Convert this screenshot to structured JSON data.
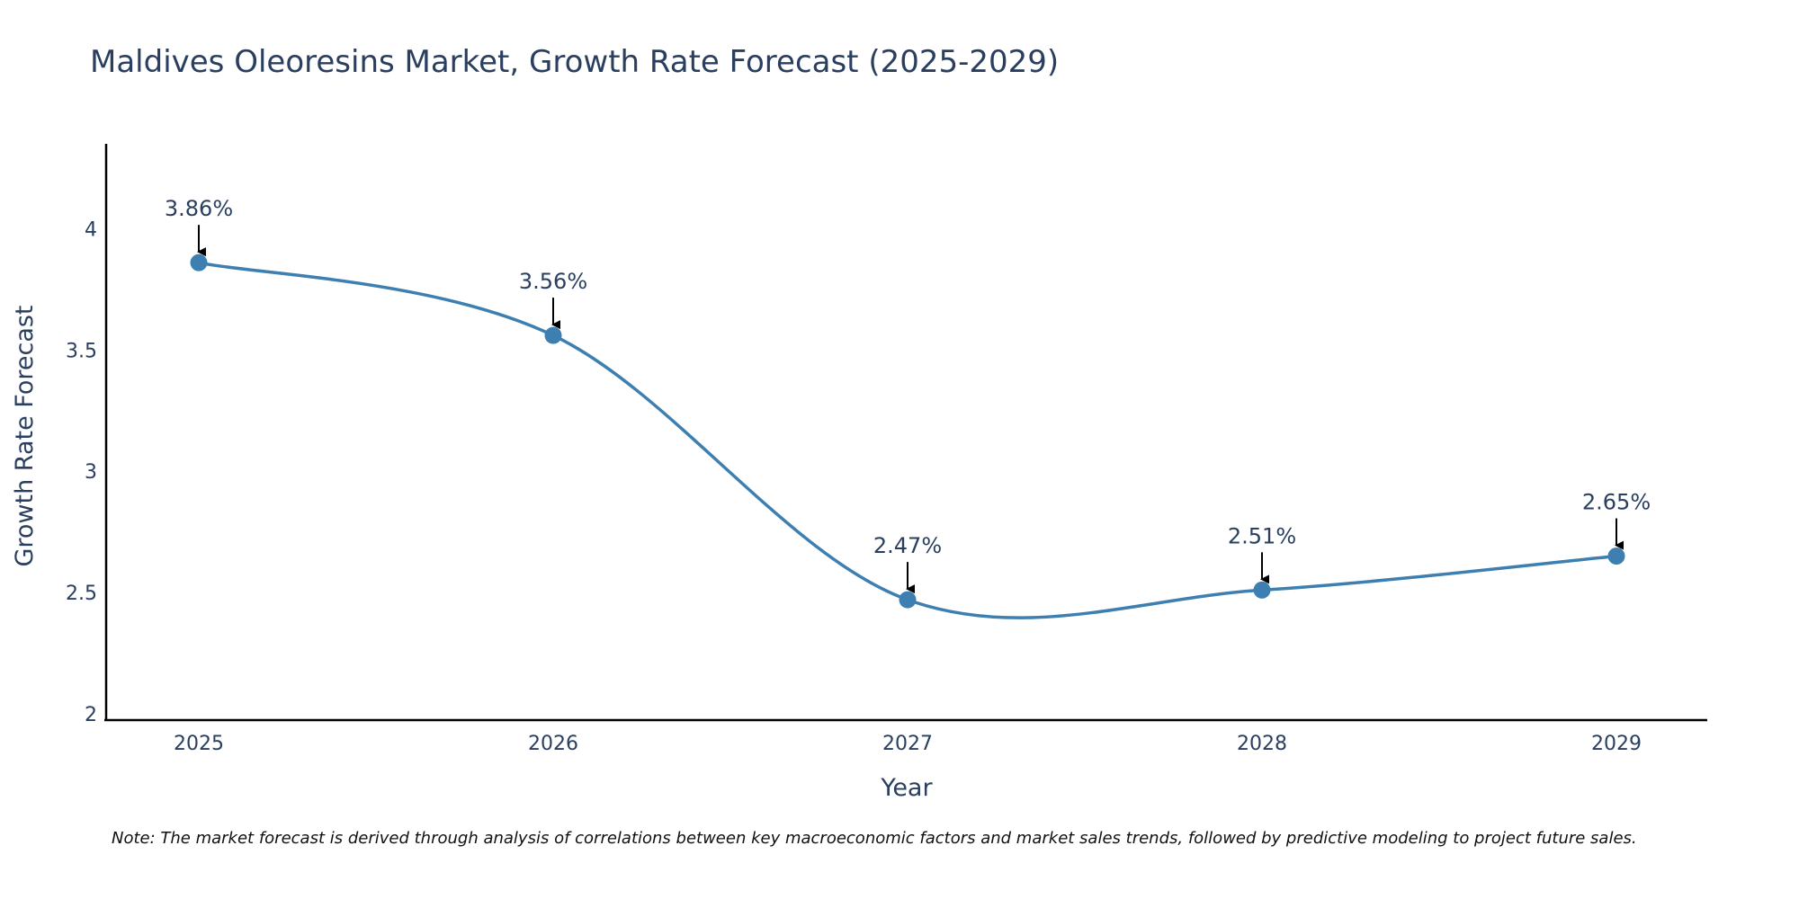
{
  "chart_data": {
    "type": "line",
    "title": "Maldives Oleoresins Market, Growth Rate Forecast (2025-2029)",
    "xlabel": "Year",
    "ylabel": "Growth Rate Forecast",
    "categories": [
      "2025",
      "2026",
      "2027",
      "2028",
      "2029"
    ],
    "values": [
      3.86,
      3.56,
      2.47,
      2.51,
      2.65
    ],
    "data_labels": [
      "3.86%",
      "3.56%",
      "2.47%",
      "2.51%",
      "2.65%"
    ],
    "ylim": [
      1.97,
      4.35
    ],
    "yticks": [
      2,
      2.5,
      3,
      3.5,
      4
    ],
    "ytick_labels": [
      "2",
      "2.5",
      "3",
      "3.5",
      "4"
    ],
    "grid": false,
    "line_shape": "spline",
    "line_color": "#3d7fb0",
    "marker_color": "#3d7fb0",
    "arrow_color": "#000000",
    "axis_color": "#000000",
    "text_color": "#2a3f5f"
  },
  "note": "Note: The market forecast is derived through analysis of correlations between key macroeconomic factors and market sales trends, followed by predictive modeling to project future sales."
}
